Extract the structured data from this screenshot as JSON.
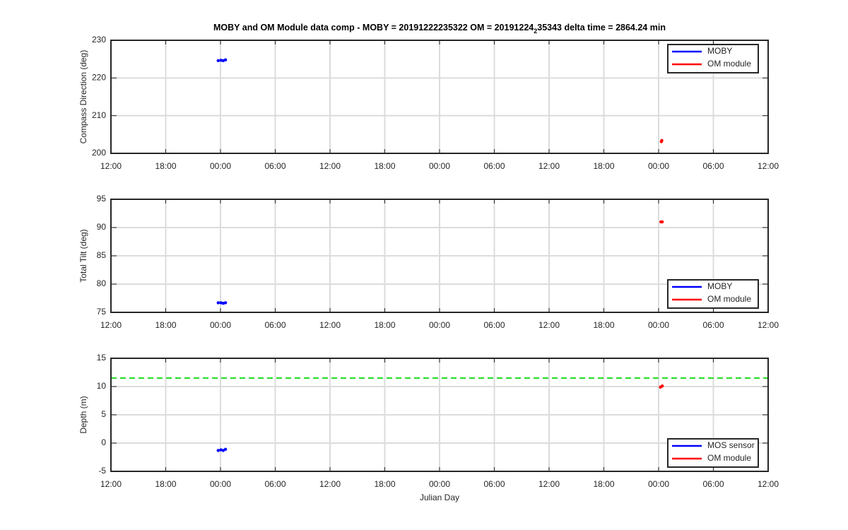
{
  "chart_data": [
    {
      "type": "line",
      "title": [
        "MOBY and OM Module data comp - MOBY = 20191222235322 OM = 20191224",
        "2",
        "35343 delta time = 2864.24 min"
      ],
      "ylabel": "Compass Direction (deg)",
      "xlim": [
        0,
        72
      ],
      "xticks": [
        {
          "value": 0,
          "label": "12:00"
        },
        {
          "value": 6,
          "label": "18:00"
        },
        {
          "value": 12,
          "label": "00:00"
        },
        {
          "value": 18,
          "label": "06:00"
        },
        {
          "value": 24,
          "label": "12:00"
        },
        {
          "value": 30,
          "label": "18:00"
        },
        {
          "value": 36,
          "label": "00:00"
        },
        {
          "value": 42,
          "label": "06:00"
        },
        {
          "value": 48,
          "label": "12:00"
        },
        {
          "value": 54,
          "label": "18:00"
        },
        {
          "value": 60,
          "label": "00:00"
        },
        {
          "value": 66,
          "label": "06:00"
        },
        {
          "value": 72,
          "label": "12:00"
        }
      ],
      "ylim": [
        200,
        230
      ],
      "yticks": [
        200,
        210,
        220,
        230
      ],
      "grid": true,
      "legend": "northeast",
      "series": [
        {
          "name": "MOBY",
          "color": "#0000ff",
          "x": [
            11.75,
            12.05,
            12.3,
            12.55
          ],
          "values": [
            224.6,
            224.7,
            224.6,
            224.8
          ]
        },
        {
          "name": "OM module",
          "color": "#ff0000",
          "x": [
            60.3,
            60.35
          ],
          "values": [
            203.1,
            203.4
          ]
        }
      ]
    },
    {
      "type": "line",
      "ylabel": "Total Tilt (deg)",
      "xlim": [
        0,
        72
      ],
      "xticks": [
        {
          "value": 0,
          "label": "12:00"
        },
        {
          "value": 6,
          "label": "18:00"
        },
        {
          "value": 12,
          "label": "00:00"
        },
        {
          "value": 18,
          "label": "06:00"
        },
        {
          "value": 24,
          "label": "12:00"
        },
        {
          "value": 30,
          "label": "18:00"
        },
        {
          "value": 36,
          "label": "00:00"
        },
        {
          "value": 42,
          "label": "06:00"
        },
        {
          "value": 48,
          "label": "12:00"
        },
        {
          "value": 54,
          "label": "18:00"
        },
        {
          "value": 60,
          "label": "00:00"
        },
        {
          "value": 66,
          "label": "06:00"
        },
        {
          "value": 72,
          "label": "12:00"
        }
      ],
      "ylim": [
        75,
        95
      ],
      "yticks": [
        75,
        80,
        85,
        90,
        95
      ],
      "grid": true,
      "legend": "southeast",
      "series": [
        {
          "name": "MOBY",
          "color": "#0000ff",
          "x": [
            11.75,
            12.05,
            12.3,
            12.55
          ],
          "values": [
            76.7,
            76.7,
            76.6,
            76.7
          ]
        },
        {
          "name": "OM module",
          "color": "#ff0000",
          "x": [
            60.25,
            60.4
          ],
          "values": [
            91.0,
            91.0
          ]
        }
      ]
    },
    {
      "type": "line",
      "ylabel": "Depth (m)",
      "xlabel": "Julian Day",
      "xlim": [
        0,
        72
      ],
      "xticks": [
        {
          "value": 0,
          "label": "12:00"
        },
        {
          "value": 6,
          "label": "18:00"
        },
        {
          "value": 12,
          "label": "00:00"
        },
        {
          "value": 18,
          "label": "06:00"
        },
        {
          "value": 24,
          "label": "12:00"
        },
        {
          "value": 30,
          "label": "18:00"
        },
        {
          "value": 36,
          "label": "00:00"
        },
        {
          "value": 42,
          "label": "06:00"
        },
        {
          "value": 48,
          "label": "12:00"
        },
        {
          "value": 54,
          "label": "18:00"
        },
        {
          "value": 60,
          "label": "00:00"
        },
        {
          "value": 66,
          "label": "06:00"
        },
        {
          "value": 72,
          "label": "12:00"
        }
      ],
      "ylim": [
        -5,
        15
      ],
      "yticks": [
        -5,
        0,
        5,
        10,
        15
      ],
      "grid": true,
      "legend": "southeast",
      "ref_line": 11.5,
      "ref_line_color": "#22dd22",
      "series": [
        {
          "name": "MOS sensor",
          "color": "#0000ff",
          "x": [
            11.75,
            12.05,
            12.3,
            12.55
          ],
          "values": [
            -1.3,
            -1.2,
            -1.3,
            -1.1
          ]
        },
        {
          "name": "OM module",
          "color": "#ff0000",
          "x": [
            60.2,
            60.4
          ],
          "values": [
            9.9,
            10.1
          ]
        }
      ]
    }
  ]
}
